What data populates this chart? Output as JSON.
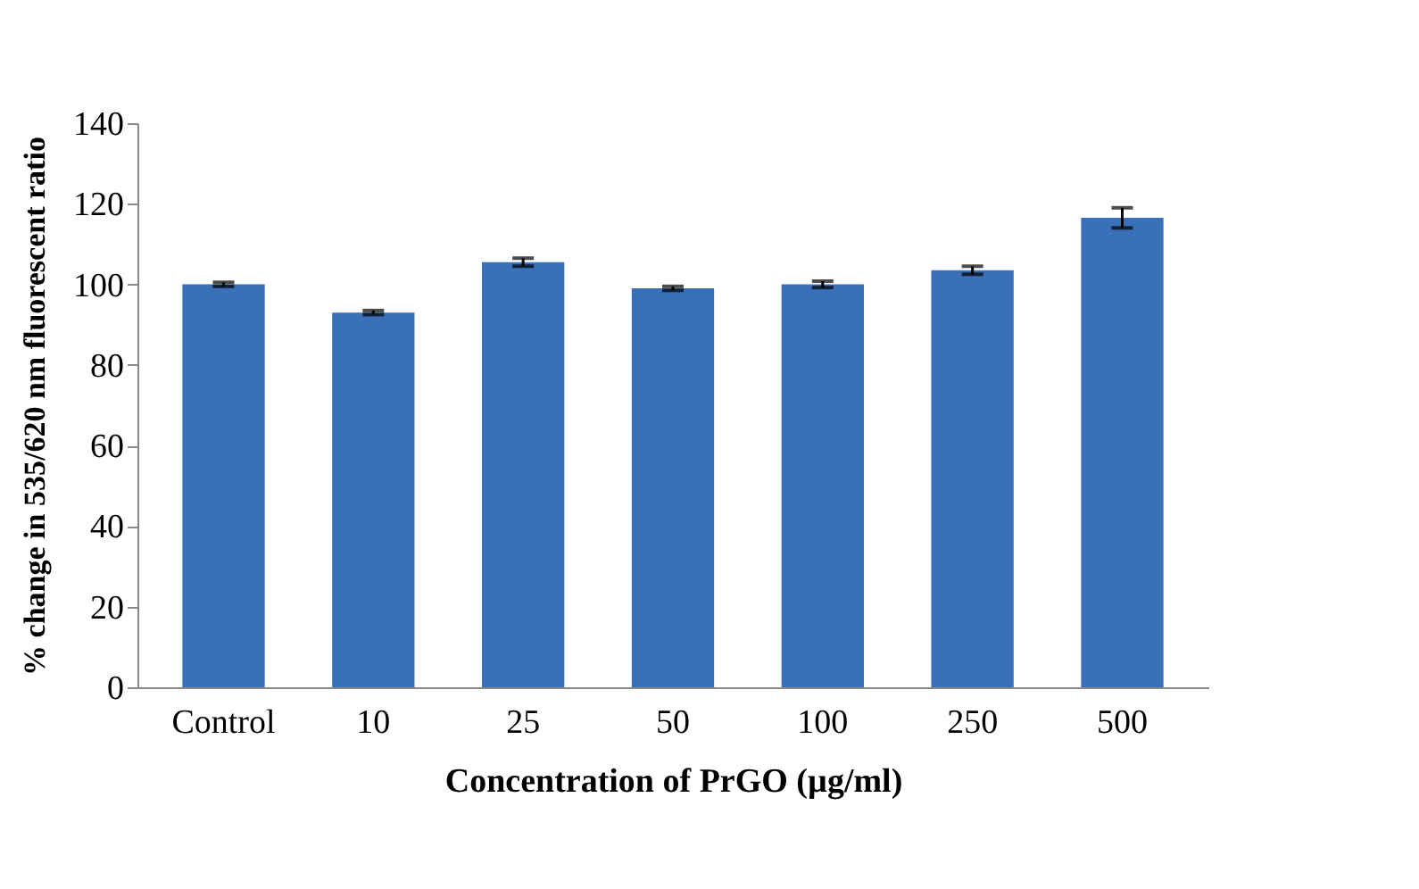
{
  "chart_data": {
    "type": "bar",
    "xlabel": "Concentration of PrGO (µg/ml)",
    "ylabel": "% change in 535/620 nm fluorescent ratio",
    "categories": [
      "Control",
      "10",
      "25",
      "50",
      "100",
      "250",
      "500"
    ],
    "values": [
      100,
      93,
      105.5,
      99,
      100,
      103.5,
      116.5
    ],
    "errors": [
      0.5,
      0.5,
      1,
      0.5,
      0.8,
      1,
      2.5
    ],
    "color": "#3a70b8",
    "ylim": [
      0,
      140
    ],
    "yticks": [
      0,
      20,
      40,
      60,
      80,
      100,
      120,
      140
    ],
    "grid": false
  }
}
